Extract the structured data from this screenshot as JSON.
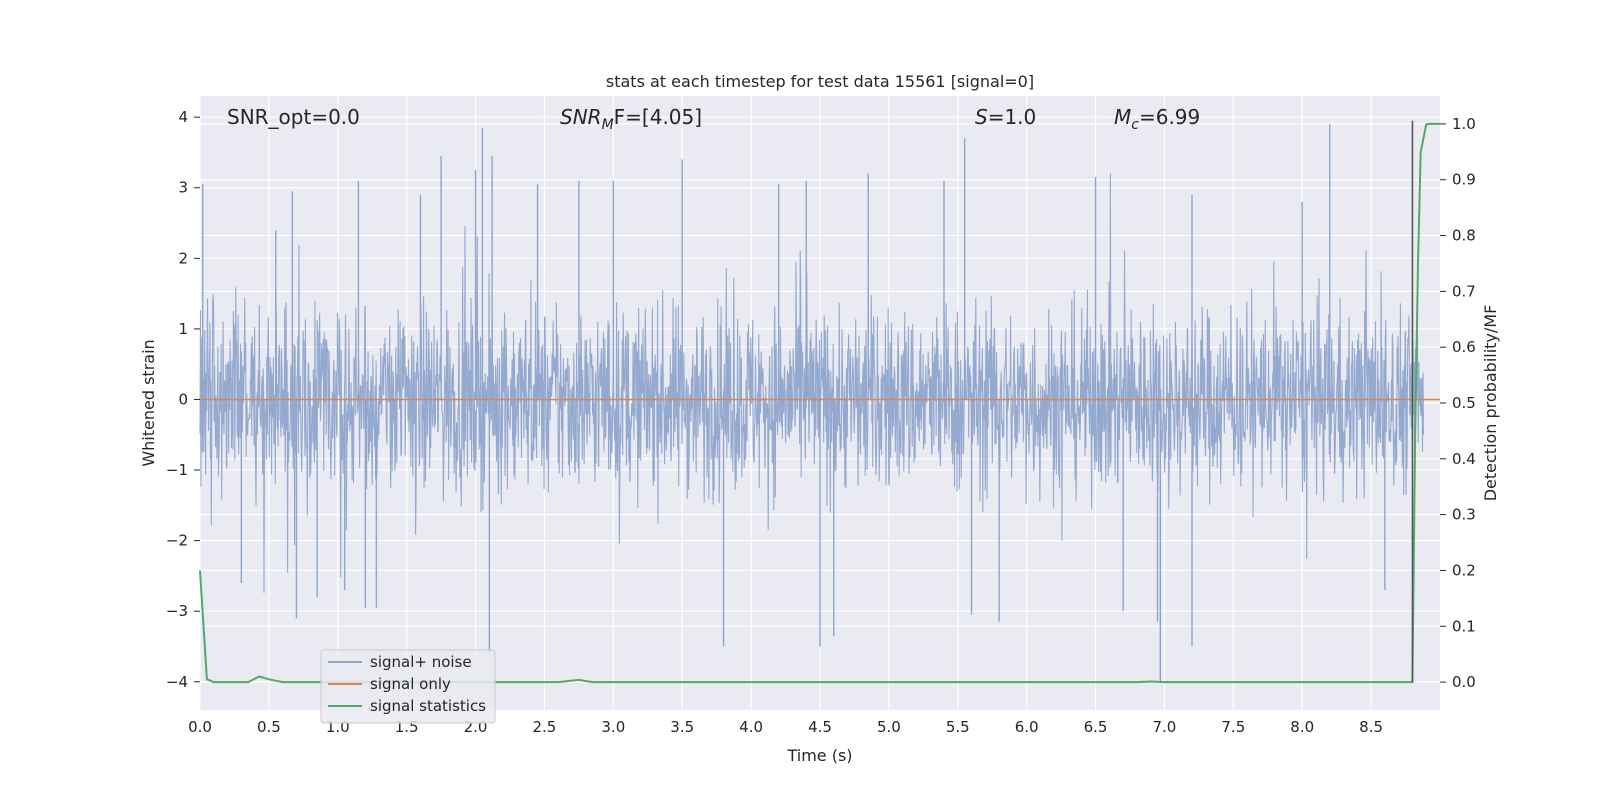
{
  "chart_data": {
    "type": "line",
    "title": "stats at each timestep for test data 15561 [signal=0]",
    "xlabel": "Time (s)",
    "ylabel": "Whitened strain",
    "y2label": "Detection probability/MF",
    "xlim": [
      0.0,
      9.0
    ],
    "ylim": [
      -4.4,
      4.3
    ],
    "y2lim": [
      -0.05,
      1.05
    ],
    "xticks": [
      "0.0",
      "0.5",
      "1.0",
      "1.5",
      "2.0",
      "2.5",
      "3.0",
      "3.5",
      "4.0",
      "4.5",
      "5.0",
      "5.5",
      "6.0",
      "6.5",
      "7.0",
      "7.5",
      "8.0",
      "8.5"
    ],
    "yticks": [
      "4",
      "3",
      "2",
      "1",
      "0",
      "−1",
      "−2",
      "−3",
      "−4"
    ],
    "y2ticks": [
      "1.0",
      "0.9",
      "0.8",
      "0.7",
      "0.6",
      "0.5",
      "0.4",
      "0.3",
      "0.2",
      "0.1",
      "0.0"
    ],
    "grid": true,
    "legend_position": "lower-left",
    "annotations": {
      "snr_opt": "SNR_opt=0.0",
      "snr_mf_main": "SNR",
      "snr_mf_sub": "M",
      "snr_mf_rest": "F=[4.05]",
      "s_main": "S",
      "s_rest": "=1.0",
      "mc_main": "M",
      "mc_sub": "c",
      "mc_rest": "=6.99"
    },
    "series": [
      {
        "name": "signal+ noise",
        "color": "#8fa5cc",
        "description_values": "dense whitened strain noise, approx. within [-1.5, 1.5] with spikes",
        "peaks": [
          {
            "x": 0.02,
            "y": 3.05
          },
          {
            "x": 0.3,
            "y": -2.6
          },
          {
            "x": 0.55,
            "y": 2.4
          },
          {
            "x": 0.67,
            "y": 2.95
          },
          {
            "x": 0.7,
            "y": -3.1
          },
          {
            "x": 0.85,
            "y": -2.8
          },
          {
            "x": 1.05,
            "y": -2.7
          },
          {
            "x": 1.15,
            "y": 3.1
          },
          {
            "x": 1.2,
            "y": -2.95
          },
          {
            "x": 1.28,
            "y": -2.95
          },
          {
            "x": 1.6,
            "y": 2.9
          },
          {
            "x": 1.75,
            "y": 3.45
          },
          {
            "x": 2.0,
            "y": 3.25
          },
          {
            "x": 2.05,
            "y": 3.85
          },
          {
            "x": 2.1,
            "y": -3.6
          },
          {
            "x": 2.12,
            "y": 3.45
          },
          {
            "x": 2.45,
            "y": 3.05
          },
          {
            "x": 2.75,
            "y": 3.1
          },
          {
            "x": 3.0,
            "y": 3.1
          },
          {
            "x": 3.5,
            "y": 3.4
          },
          {
            "x": 3.8,
            "y": -3.5
          },
          {
            "x": 4.2,
            "y": 3.05
          },
          {
            "x": 4.4,
            "y": 3.1
          },
          {
            "x": 4.5,
            "y": -3.5
          },
          {
            "x": 4.6,
            "y": -3.35
          },
          {
            "x": 4.85,
            "y": 3.2
          },
          {
            "x": 5.4,
            "y": 3.1
          },
          {
            "x": 5.55,
            "y": 3.7
          },
          {
            "x": 5.6,
            "y": -3.05
          },
          {
            "x": 5.8,
            "y": -3.15
          },
          {
            "x": 6.5,
            "y": 3.15
          },
          {
            "x": 6.7,
            "y": -3.0
          },
          {
            "x": 6.95,
            "y": -3.15
          },
          {
            "x": 6.97,
            "y": -4.0
          },
          {
            "x": 7.2,
            "y": -3.5
          },
          {
            "x": 7.2,
            "y": 2.9
          },
          {
            "x": 8.0,
            "y": 2.8
          },
          {
            "x": 8.2,
            "y": 3.9
          },
          {
            "x": 8.6,
            "y": -2.7
          },
          {
            "x": 8.8,
            "y": 3.95
          }
        ]
      },
      {
        "name": "signal only",
        "color": "#dd8452",
        "x": [
          0.0,
          9.0
        ],
        "y": [
          0.0,
          0.0
        ]
      },
      {
        "name": "signal statistics",
        "color": "#55a868",
        "axis": "right",
        "x": [
          0.0,
          0.05,
          0.1,
          0.2,
          0.35,
          0.43,
          0.5,
          0.6,
          2.6,
          2.75,
          2.85,
          6.8,
          6.9,
          7.0,
          8.8,
          8.82,
          8.84,
          8.86,
          8.9,
          8.92,
          9.0
        ],
        "y": [
          0.2,
          0.005,
          0.0,
          0.0,
          0.0,
          0.01,
          0.005,
          0.0,
          0.0,
          0.004,
          0.0,
          0.0,
          0.001,
          0.0,
          0.0,
          0.45,
          0.75,
          0.95,
          0.999,
          1.0,
          1.0
        ]
      }
    ]
  }
}
